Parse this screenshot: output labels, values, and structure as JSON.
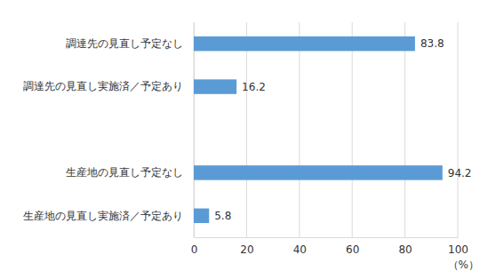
{
  "chart_data": {
    "type": "bar",
    "orientation": "horizontal",
    "categories": [
      "調達先の見直し予定なし",
      "調達先の見直し実施済／予定あり",
      null,
      "生産地の見直し予定なし",
      "生産地の見直し実施済／予定あり"
    ],
    "values": [
      83.8,
      16.2,
      null,
      94.2,
      5.8
    ],
    "color": "#5b9bd5",
    "xlim": [
      0,
      100
    ],
    "xticks": [
      0,
      20,
      40,
      60,
      80,
      100
    ],
    "xlabel": "（%）",
    "grid": true,
    "data_labels": true
  }
}
